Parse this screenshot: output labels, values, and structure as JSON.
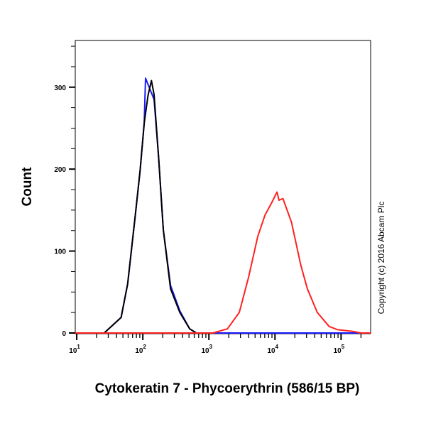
{
  "chart_data": {
    "type": "line",
    "title": "",
    "xlabel": "Cytokeratin 7 - Phycoerythrin (586/15 BP)",
    "ylabel": "Count",
    "x_scale": "log",
    "xlim": [
      9.5,
      280000
    ],
    "ylim": [
      0,
      357
    ],
    "x_ticks": [
      {
        "base": "10",
        "exp": "1",
        "value": 10
      },
      {
        "base": "10",
        "exp": "2",
        "value": 100
      },
      {
        "base": "10",
        "exp": "3",
        "value": 1000
      },
      {
        "base": "10",
        "exp": "4",
        "value": 10000
      },
      {
        "base": "10",
        "exp": "5",
        "value": 100000
      }
    ],
    "y_ticks": [
      {
        "label": "0",
        "value": 0
      },
      {
        "label": "100",
        "value": 100
      },
      {
        "label": "200",
        "value": 200
      },
      {
        "label": "300",
        "value": 300
      }
    ],
    "grid": false,
    "series": [
      {
        "color": "#1a1aff",
        "x": [
          9.5,
          26,
          47,
          59,
          76,
          91,
          105,
          110,
          135,
          148,
          174,
          204,
          263,
          363,
          513,
          646,
          280000
        ],
        "y": [
          0,
          0,
          19,
          60,
          140,
          198,
          256,
          311,
          293,
          285,
          213,
          126,
          58,
          27,
          5,
          0,
          0
        ]
      },
      {
        "color": "#000000",
        "x": [
          9.5,
          26,
          47,
          59,
          76,
          91,
          105,
          120,
          135,
          148,
          174,
          204,
          263,
          363,
          513,
          646
        ],
        "y": [
          0,
          0,
          19,
          60,
          140,
          198,
          256,
          290,
          308,
          291,
          213,
          126,
          54,
          25,
          5,
          0
        ]
      },
      {
        "color": "#ff2020",
        "x": [
          9.5,
          1148,
          1905,
          2884,
          3981,
          5495,
          7079,
          8913,
          10715,
          11500,
          13183,
          17783,
          24547,
          30903,
          43652,
          66069,
          89125,
          151356,
          199526,
          280000
        ],
        "y": [
          0,
          0,
          5,
          25,
          68,
          118,
          144,
          159,
          172,
          162,
          164,
          135,
          83,
          54,
          25,
          8,
          4,
          2,
          0,
          0
        ]
      }
    ]
  },
  "copyright": "Copyright (c) 2016 Abcam Plc"
}
